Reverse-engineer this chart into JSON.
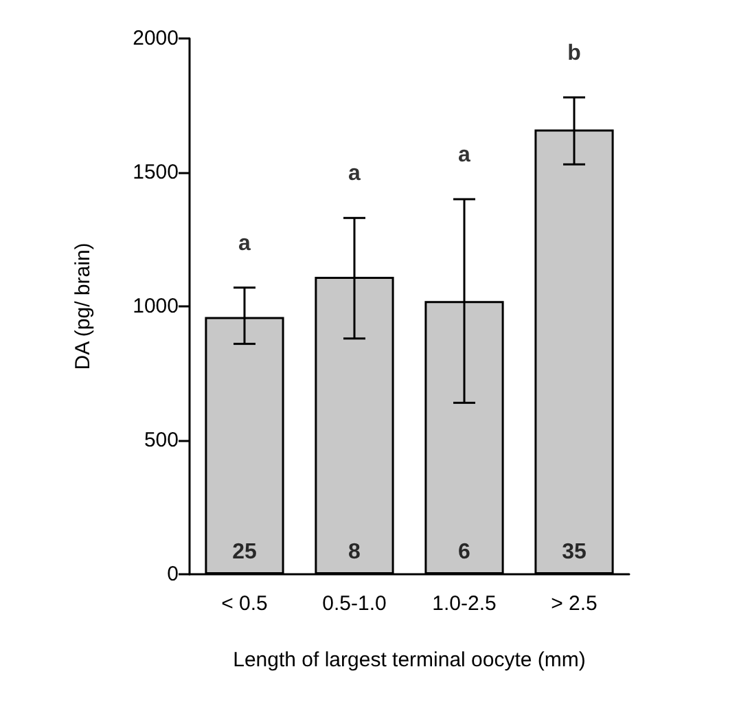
{
  "chart_data": {
    "type": "bar",
    "xlabel": "Length of largest terminal oocyte (mm)",
    "ylabel": "DA (pg/ brain)",
    "categories": [
      "< 0.5",
      "0.5-1.0",
      "1.0-2.5",
      "> 2.5"
    ],
    "values": [
      960,
      1110,
      1020,
      1660
    ],
    "color": "#c8c8c8",
    "errors": [
      [
        860,
        1070
      ],
      [
        880,
        1330
      ],
      [
        640,
        1400
      ],
      [
        1530,
        1780
      ]
    ],
    "ylim": [
      0,
      2000
    ],
    "yticks": [
      0,
      500,
      1000,
      1500,
      2000
    ],
    "grid": false,
    "annotations": [
      "a",
      "a",
      "a",
      "b",
      "25",
      "8",
      "6",
      "35"
    ]
  }
}
